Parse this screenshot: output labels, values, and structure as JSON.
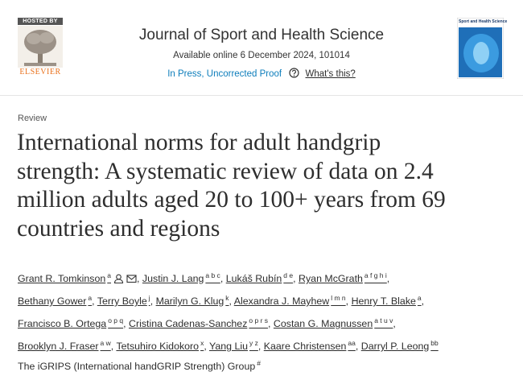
{
  "header": {
    "logo_top": "HOSTED BY",
    "logo_bottom": "ELSEVIER",
    "journal": "Journal of Sport and Health Science",
    "available": "Available online 6 December 2024, 101014",
    "status": "In Press, Uncorrected Proof",
    "help": "What's this?",
    "cover_title": "Sport and Health Science"
  },
  "article": {
    "type": "Review",
    "title_lines": [
      "International norms for adult handgrip",
      "strength: A systematic review of data on 2.4",
      "million adults aged 20 to 100+ years from 69",
      "countries and regions"
    ],
    "author_lines": [
      [
        {
          "name": "Grant R. Tomkinson",
          "sup": "a",
          "icons": true,
          "sep": ","
        },
        {
          "name": "Justin J. Lang",
          "sup": "a b c",
          "sep": ","
        },
        {
          "name": "Lukáš Rubín",
          "sup": "d e",
          "sep": ","
        },
        {
          "name": "Ryan McGrath",
          "sup": "a f g h i",
          "sep": ","
        }
      ],
      [
        {
          "name": "Bethany Gower",
          "sup": "a",
          "sep": ","
        },
        {
          "name": "Terry Boyle",
          "sup": "j",
          "sep": ","
        },
        {
          "name": "Marilyn G. Klug",
          "sup": "k",
          "sep": ","
        },
        {
          "name": "Alexandra J. Mayhew",
          "sup": "l m n",
          "sep": ","
        },
        {
          "name": "Henry T. Blake",
          "sup": "a",
          "sep": ","
        }
      ],
      [
        {
          "name": "Francisco B. Ortega",
          "sup": "o p q",
          "sep": ","
        },
        {
          "name": "Cristina Cadenas-Sanchez",
          "sup": "o p r s",
          "sep": ","
        },
        {
          "name": "Costan G. Magnussen",
          "sup": "a t u v",
          "sep": ","
        }
      ],
      [
        {
          "name": "Brooklyn J. Fraser",
          "sup": "a w",
          "sep": ","
        },
        {
          "name": "Tetsuhiro Kidokoro",
          "sup": "x",
          "sep": ","
        },
        {
          "name": "Yang Liu",
          "sup": "y z",
          "sep": ","
        },
        {
          "name": "Kaare Christensen",
          "sup": "aa",
          "sep": ","
        },
        {
          "name": "Darryl P. Leong",
          "sup": "bb"
        }
      ]
    ],
    "group": {
      "name": "The iGRIPS (International handGRIP Strength) Group",
      "sup": "#"
    }
  }
}
